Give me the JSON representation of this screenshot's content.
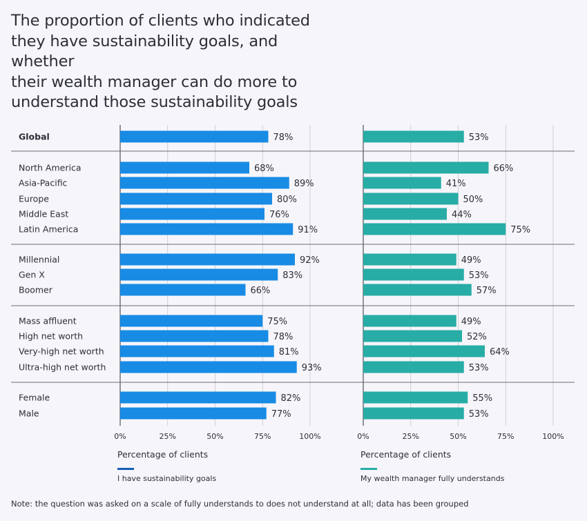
{
  "chart_data": {
    "type": "bar",
    "title": "The proportion of clients who indicated\nthey have sustainability goals, and whether\ntheir wealth manager can do more to\nunderstand those sustainability goals",
    "categories": [
      "Global",
      "North America",
      "Asia-Pacific",
      "Europe",
      "Middle East",
      "Latin America",
      "Millennial",
      "Gen X",
      "Boomer",
      "Mass affluent",
      "High net worth",
      "Very-high net worth",
      "Ultra-high net worth",
      "Female",
      "Male"
    ],
    "groups": [
      [
        "Global"
      ],
      [
        "North America",
        "Asia-Pacific",
        "Europe",
        "Middle East",
        "Latin America"
      ],
      [
        "Millennial",
        "Gen X",
        "Boomer"
      ],
      [
        "Mass affluent",
        "High net worth",
        "Very-high net worth",
        "Ultra-high net worth"
      ],
      [
        "Female",
        "Male"
      ]
    ],
    "series": [
      {
        "name": "I have sustainability goals",
        "color": "#188ce5",
        "legend_color": "#155cb4",
        "values": [
          78,
          68,
          89,
          80,
          76,
          91,
          92,
          83,
          66,
          75,
          78,
          81,
          93,
          82,
          77
        ],
        "labels": [
          "78%",
          "68%",
          "89%",
          "80%",
          "76%",
          "91%",
          "92%",
          "83%",
          "66%",
          "75%",
          "78%",
          "81%",
          "93%",
          "82%",
          "77%"
        ]
      },
      {
        "name": "My wealth manager fully understands",
        "color": "#27aca6",
        "legend_color": "#27aca6",
        "values": [
          53,
          66,
          41,
          50,
          44,
          75,
          49,
          53,
          57,
          49,
          52,
          64,
          53,
          55,
          53
        ],
        "labels": [
          "53%",
          "66%",
          "41%",
          "50%",
          "44%",
          "75%",
          "49%",
          "53%",
          "57%",
          "49%",
          "52%",
          "64%",
          "53%",
          "55%",
          "53%"
        ]
      }
    ],
    "xlim": [
      0,
      100
    ],
    "xticks": [
      0,
      25,
      50,
      75,
      100
    ],
    "xtick_labels": [
      "0%",
      "25%",
      "50%",
      "75%",
      "100%"
    ],
    "xlabel": "Percentage of clients",
    "grid": true
  },
  "note": "Note: the question was asked on a scale of fully understands to does not understand at all; data has been grouped"
}
